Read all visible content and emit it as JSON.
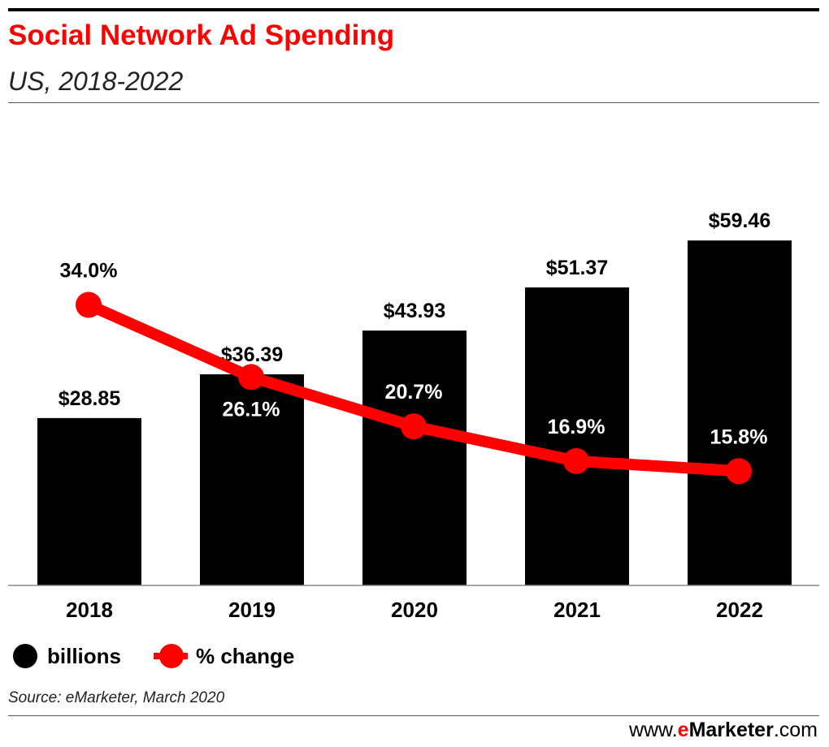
{
  "header": {
    "title": "Social Network Ad Spending",
    "subtitle": "US, 2018-2022"
  },
  "legend": {
    "billions": "billions",
    "pct_change": "% change"
  },
  "footer": {
    "source": "Source: eMarketer, March 2020",
    "brand_prefix": "www.",
    "brand_e": "e",
    "brand_name": "Marketer",
    "brand_suffix": ".com"
  },
  "colors": {
    "bar": "#000000",
    "line": "#ff0000",
    "title": "#ff0000"
  },
  "chart_data": {
    "type": "bar",
    "title": "Social Network Ad Spending",
    "subtitle": "US, 2018-2022",
    "categories": [
      "2018",
      "2019",
      "2020",
      "2021",
      "2022"
    ],
    "series": [
      {
        "name": "billions",
        "type": "bar",
        "values": [
          28.85,
          36.39,
          43.93,
          51.37,
          59.46
        ],
        "labels": [
          "$28.85",
          "$36.39",
          "$43.93",
          "$51.37",
          "$59.46"
        ]
      },
      {
        "name": "% change",
        "type": "line",
        "values": [
          34.0,
          26.1,
          20.7,
          16.9,
          15.8
        ],
        "labels": [
          "34.0%",
          "26.1%",
          "20.7%",
          "16.9%",
          "15.8%"
        ]
      }
    ],
    "ylim": [
      0,
      60
    ],
    "grid": false,
    "legend_position": "bottom-left"
  }
}
